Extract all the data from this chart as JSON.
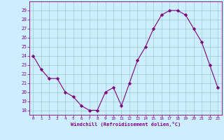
{
  "x": [
    0,
    1,
    2,
    3,
    4,
    5,
    6,
    7,
    8,
    9,
    10,
    11,
    12,
    13,
    14,
    15,
    16,
    17,
    18,
    19,
    20,
    21,
    22,
    23
  ],
  "y": [
    24,
    22.5,
    21.5,
    21.5,
    20.0,
    19.5,
    18.5,
    18.0,
    18.0,
    20.0,
    20.5,
    18.5,
    21.0,
    23.5,
    25.0,
    27.0,
    28.5,
    29.0,
    29.0,
    28.5,
    27.0,
    25.5,
    23.0,
    20.5
  ],
  "line_color": "#800080",
  "marker": "D",
  "marker_size": 2.2,
  "bg_color": "#cceeff",
  "grid_color": "#99cccc",
  "xlabel": "Windchill (Refroidissement éolien,°C)",
  "xlabel_color": "#800080",
  "tick_color": "#800080",
  "label_color": "#800080",
  "ylim": [
    17.5,
    30.0
  ],
  "xlim": [
    -0.5,
    23.5
  ],
  "yticks": [
    18,
    19,
    20,
    21,
    22,
    23,
    24,
    25,
    26,
    27,
    28,
    29
  ],
  "xticks": [
    0,
    1,
    2,
    3,
    4,
    5,
    6,
    7,
    8,
    9,
    10,
    11,
    12,
    13,
    14,
    15,
    16,
    17,
    18,
    19,
    20,
    21,
    22,
    23
  ],
  "spine_color": "#800080"
}
